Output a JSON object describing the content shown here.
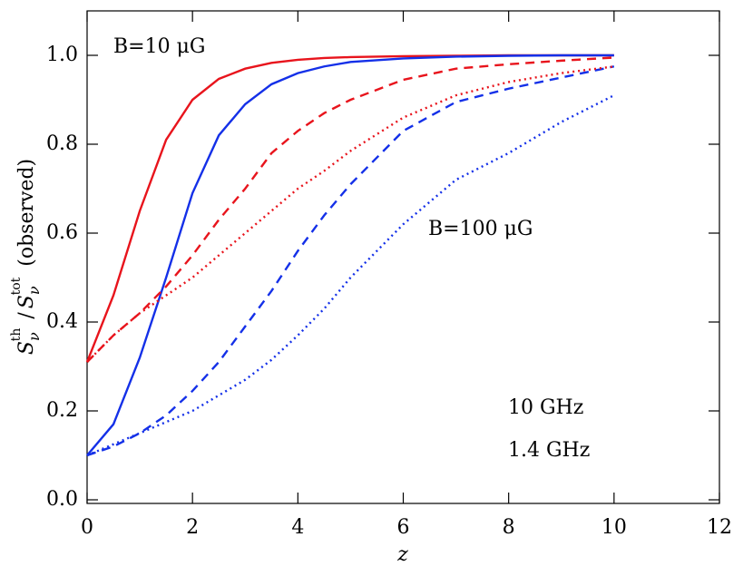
{
  "chart_data": {
    "type": "line",
    "x_label": "z",
    "y_label": [
      "S",
      "ν",
      "th",
      "/",
      "S",
      "ν",
      "tot",
      "(observed)"
    ],
    "x": [
      0,
      0.5,
      1,
      1.5,
      2,
      2.5,
      3,
      3.5,
      4,
      4.5,
      5,
      6,
      7,
      8,
      9,
      10
    ],
    "series": [
      {
        "color": "#e8141c",
        "dash": "solid",
        "values": [
          0.31,
          0.46,
          0.65,
          0.81,
          0.9,
          0.947,
          0.97,
          0.983,
          0.99,
          0.994,
          0.996,
          0.998,
          0.999,
          1.0,
          1.0,
          1.0
        ]
      },
      {
        "color": "#1430e8",
        "dash": "solid",
        "values": [
          0.1,
          0.17,
          0.32,
          0.5,
          0.69,
          0.82,
          0.89,
          0.935,
          0.96,
          0.975,
          0.985,
          0.993,
          0.997,
          0.999,
          1.0,
          1.0
        ]
      },
      {
        "color": "#e8141c",
        "dash": "dashed",
        "values": [
          0.31,
          0.37,
          0.42,
          0.48,
          0.55,
          0.63,
          0.7,
          0.78,
          0.83,
          0.87,
          0.9,
          0.945,
          0.97,
          0.98,
          0.988,
          0.995
        ]
      },
      {
        "color": "#1430e8",
        "dash": "dashed",
        "values": [
          0.1,
          0.12,
          0.15,
          0.19,
          0.245,
          0.31,
          0.39,
          0.47,
          0.56,
          0.64,
          0.71,
          0.83,
          0.895,
          0.925,
          0.95,
          0.975
        ]
      },
      {
        "color": "#e8141c",
        "dash": "dotted",
        "values": [
          0.31,
          0.37,
          0.42,
          0.46,
          0.5,
          0.55,
          0.6,
          0.65,
          0.7,
          0.74,
          0.785,
          0.86,
          0.91,
          0.94,
          0.96,
          0.975
        ]
      },
      {
        "color": "#1430e8",
        "dash": "dotted",
        "values": [
          0.1,
          0.125,
          0.15,
          0.175,
          0.2,
          0.235,
          0.27,
          0.315,
          0.37,
          0.43,
          0.5,
          0.62,
          0.72,
          0.78,
          0.85,
          0.91
        ]
      }
    ],
    "annotations": [
      {
        "text": "B=10 μG",
        "color": "#000000"
      },
      {
        "text": "B=100 μG",
        "color": "#000000"
      },
      {
        "text": "10 GHz",
        "color": "#e8141c"
      },
      {
        "text": "1.4 GHz",
        "color": "#1430e8"
      }
    ],
    "xlim": [
      0,
      12
    ],
    "ylim": [
      0,
      1.1
    ],
    "xticks": [
      0,
      2,
      4,
      6,
      8,
      10,
      12
    ],
    "yticks": [
      {
        "value": 0,
        "label": "0.0"
      },
      {
        "value": 0.2,
        "label": "0.2"
      },
      {
        "value": 0.4,
        "label": "0.4"
      },
      {
        "value": 0.6,
        "label": "0.6"
      },
      {
        "value": 0.8,
        "label": "0.8"
      },
      {
        "value": 1.0,
        "label": "1.0"
      }
    ]
  }
}
